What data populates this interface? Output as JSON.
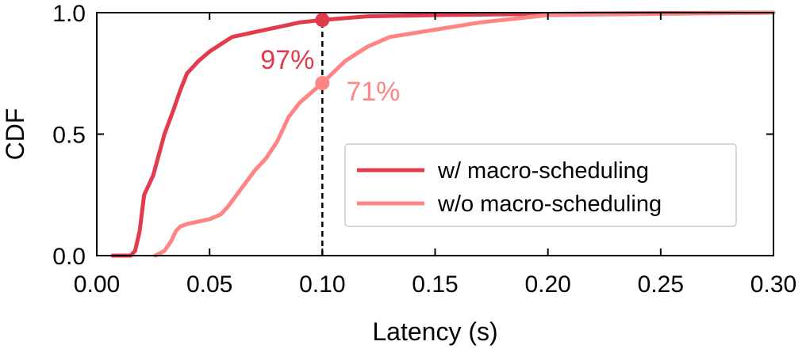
{
  "chart_data": {
    "type": "line",
    "xlabel": "Latency (s)",
    "ylabel": "CDF",
    "xlim": [
      0.0,
      0.3
    ],
    "ylim": [
      0.0,
      1.0
    ],
    "xticks": [
      0.0,
      0.05,
      0.1,
      0.15,
      0.2,
      0.25,
      0.3
    ],
    "xtick_labels": [
      "0.00",
      "0.05",
      "0.10",
      "0.15",
      "0.20",
      "0.25",
      "0.30"
    ],
    "yticks": [
      0.0,
      0.5,
      1.0
    ],
    "ytick_labels": [
      "0.0",
      "0.5",
      "1.0"
    ],
    "grid": false,
    "legend_position": "center-right",
    "series": [
      {
        "name": "w/ macro-scheduling",
        "color": "#e23b4e",
        "x": [
          0.007,
          0.015,
          0.017,
          0.019,
          0.021,
          0.025,
          0.03,
          0.034,
          0.037,
          0.04,
          0.045,
          0.05,
          0.055,
          0.06,
          0.07,
          0.08,
          0.085,
          0.09,
          0.1,
          0.12,
          0.15,
          0.2,
          0.25,
          0.3
        ],
        "y": [
          0.0,
          0.0,
          0.02,
          0.1,
          0.25,
          0.33,
          0.5,
          0.6,
          0.68,
          0.75,
          0.8,
          0.84,
          0.87,
          0.9,
          0.92,
          0.94,
          0.95,
          0.96,
          0.97,
          0.985,
          0.99,
          0.995,
          0.998,
          1.0
        ]
      },
      {
        "name": "w/o macro-scheduling",
        "color": "#ff8585",
        "x": [
          0.026,
          0.03,
          0.033,
          0.035,
          0.037,
          0.04,
          0.045,
          0.05,
          0.055,
          0.058,
          0.062,
          0.066,
          0.07,
          0.075,
          0.08,
          0.085,
          0.09,
          0.1,
          0.11,
          0.12,
          0.13,
          0.15,
          0.17,
          0.2,
          0.25,
          0.3
        ],
        "y": [
          0.0,
          0.02,
          0.06,
          0.1,
          0.12,
          0.13,
          0.14,
          0.15,
          0.17,
          0.2,
          0.25,
          0.3,
          0.35,
          0.4,
          0.47,
          0.57,
          0.63,
          0.71,
          0.8,
          0.86,
          0.9,
          0.93,
          0.96,
          0.99,
          0.995,
          1.0
        ]
      }
    ],
    "reference_line": {
      "x": 0.1,
      "style": "dashed",
      "color": "#000000"
    },
    "annotations": [
      {
        "text": "97%",
        "x": 0.1,
        "y": 0.97,
        "series": 0,
        "placement": "below-left",
        "color": "#e23b4e"
      },
      {
        "text": "71%",
        "x": 0.1,
        "y": 0.71,
        "series": 1,
        "placement": "right",
        "color": "#ff8585"
      }
    ]
  }
}
